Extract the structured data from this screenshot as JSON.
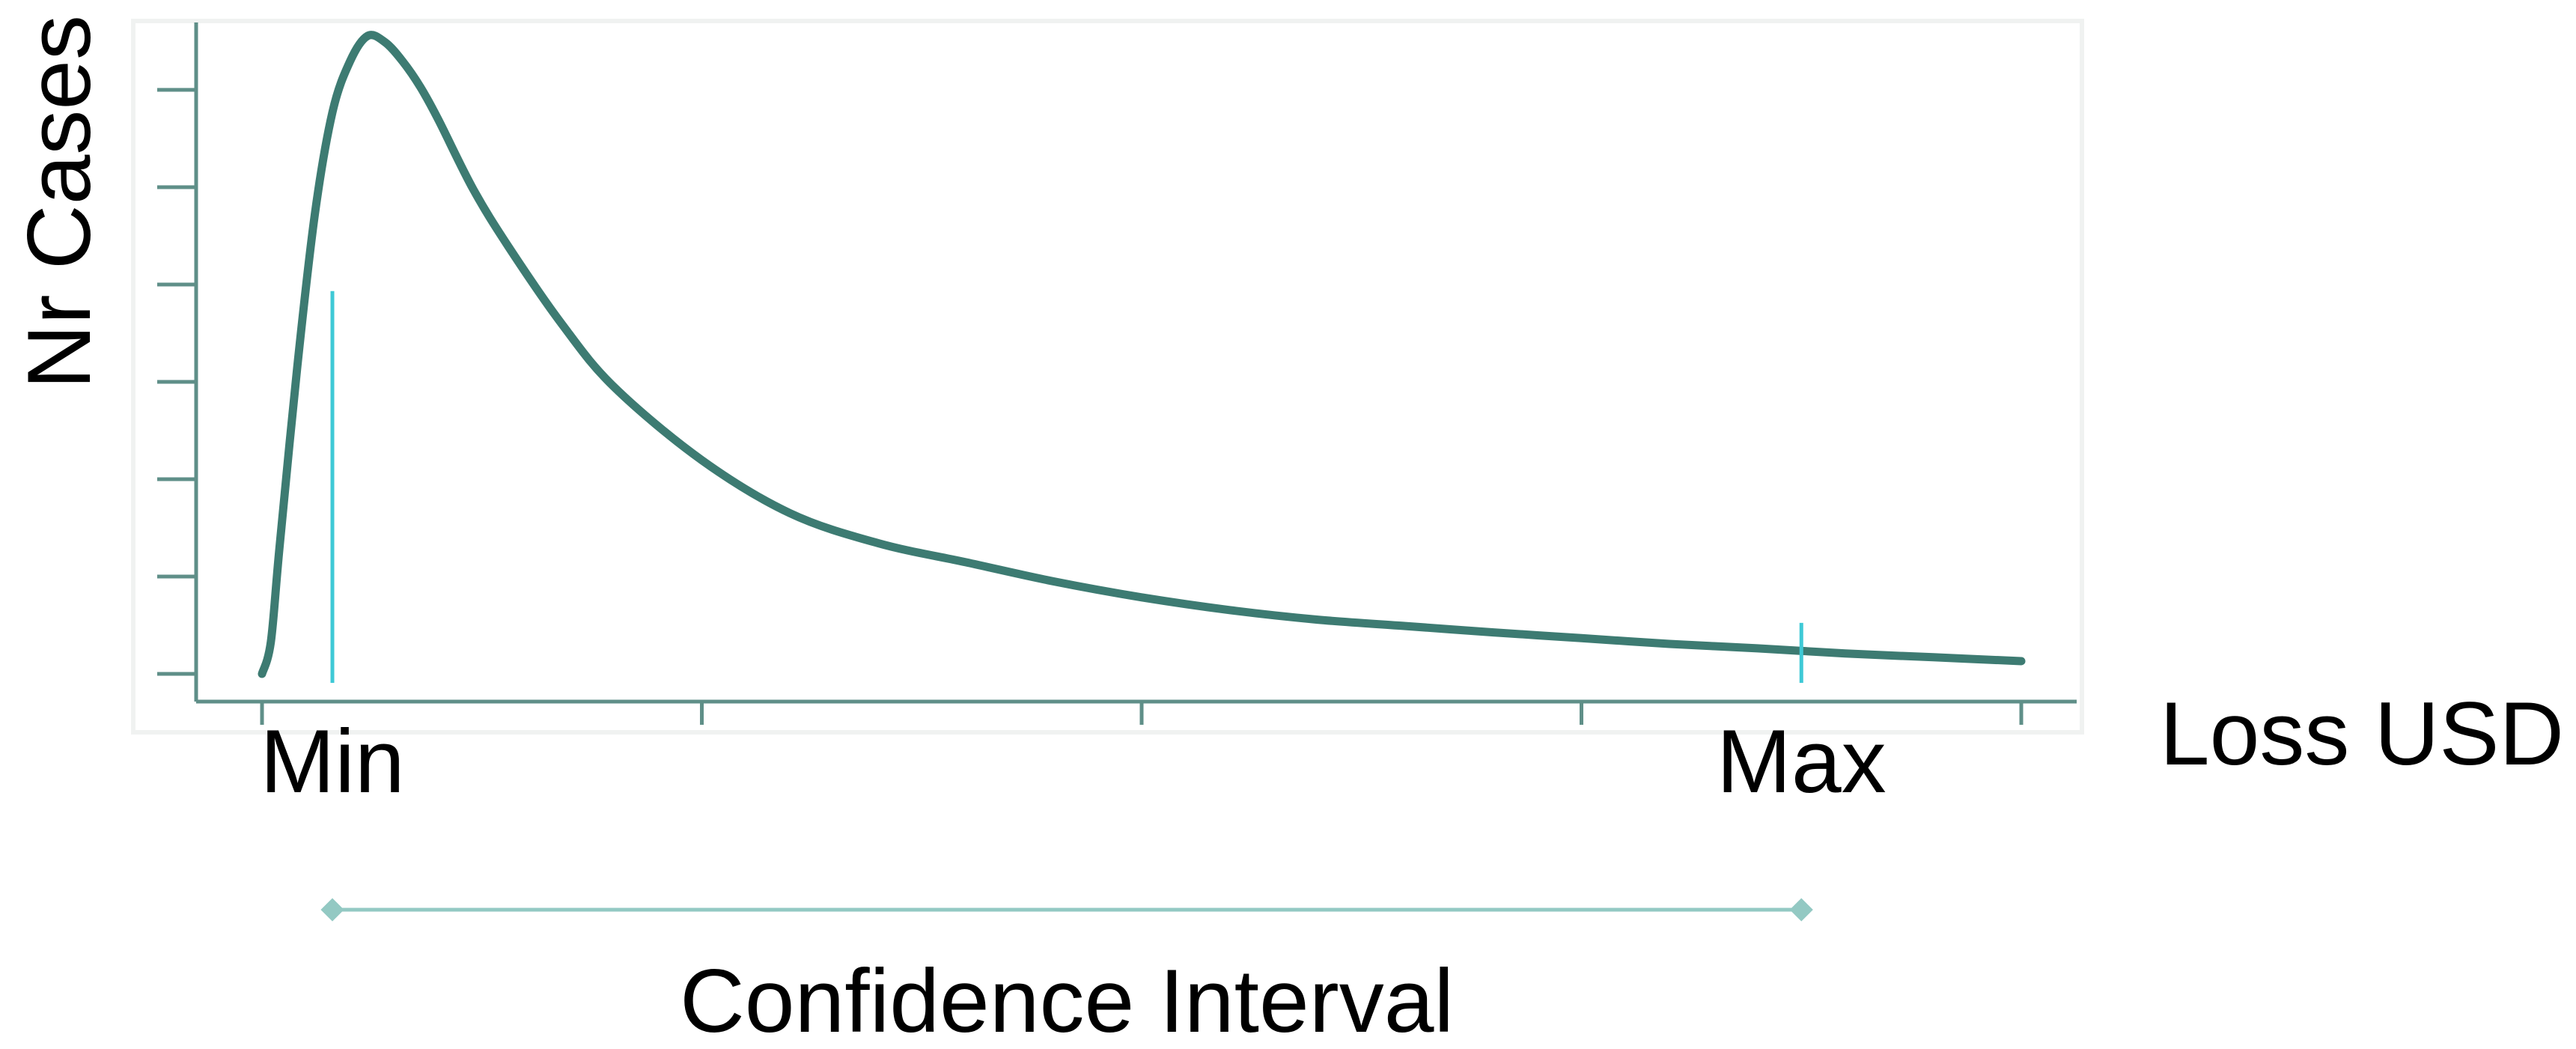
{
  "chart_data": {
    "type": "line",
    "title": "",
    "xlabel": "Loss USD",
    "ylabel": "Nr Cases",
    "xlim": [
      0,
      1
    ],
    "ylim": [
      0,
      1
    ],
    "x_ticks_count": 5,
    "y_ticks_count": 7,
    "grid": false,
    "series": [
      {
        "x": [
          0,
          0.005,
          0.01,
          0.02,
          0.03,
          0.04,
          0.05,
          0.06,
          0.07,
          0.08,
          0.09,
          0.1,
          0.12,
          0.14,
          0.17,
          0.2,
          0.25,
          0.3,
          0.35,
          0.4,
          0.45,
          0.5,
          0.55,
          0.6,
          0.65,
          0.7,
          0.75,
          0.8,
          0.85,
          0.9,
          0.95,
          1.0
        ],
        "values": [
          0,
          0.05,
          0.2,
          0.48,
          0.72,
          0.88,
          0.96,
          1.0,
          0.99,
          0.96,
          0.92,
          0.87,
          0.76,
          0.67,
          0.55,
          0.45,
          0.335,
          0.252,
          0.205,
          0.175,
          0.145,
          0.12,
          0.1,
          0.085,
          0.075,
          0.065,
          0.056,
          0.047,
          0.04,
          0.032,
          0.026,
          0.02
        ],
        "color": "#3d7b72"
      }
    ],
    "markers": [
      {
        "label": "Min",
        "x": 0.04,
        "value": 0.6,
        "color": "#3ec9d6"
      },
      {
        "label": "Max",
        "x": 0.875,
        "value": 0.08,
        "color": "#3ec9d6"
      }
    ],
    "interval": {
      "label": "Confidence Interval",
      "from": 0.04,
      "to": 0.875,
      "color": "#93c9c3"
    },
    "colors": {
      "curve": "#3d7b72",
      "axis": "#5f8f88",
      "marker": "#3ec9d6",
      "interval": "#93c9c3"
    }
  }
}
